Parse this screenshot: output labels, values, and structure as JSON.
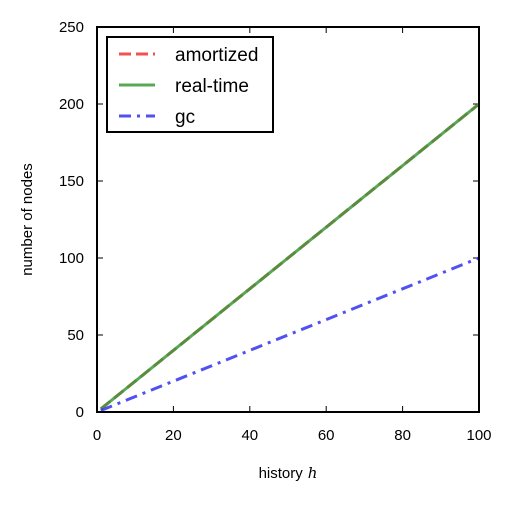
{
  "chart_data": {
    "type": "line",
    "xlabel": "history",
    "xlabel_var": "h",
    "ylabel": "number of nodes",
    "xlim": [
      0,
      100
    ],
    "ylim": [
      0,
      250
    ],
    "xticks": [
      "0",
      "20",
      "40",
      "60",
      "80",
      "100"
    ],
    "yticks": [
      "0",
      "50",
      "100",
      "150",
      "200",
      "250"
    ],
    "grid": false,
    "legend": "top-left",
    "series": [
      {
        "name": "amortized",
        "color": "#ee3333",
        "style": "dashed",
        "x": [
          1,
          100
        ],
        "y": [
          2,
          200
        ]
      },
      {
        "name": "real-time",
        "color": "#3a9a3a",
        "style": "solid",
        "x": [
          1,
          100
        ],
        "y": [
          2,
          200
        ]
      },
      {
        "name": "gc",
        "color": "#3333ee",
        "style": "dash-dot",
        "x": [
          1,
          100
        ],
        "y": [
          1,
          100
        ]
      }
    ]
  }
}
